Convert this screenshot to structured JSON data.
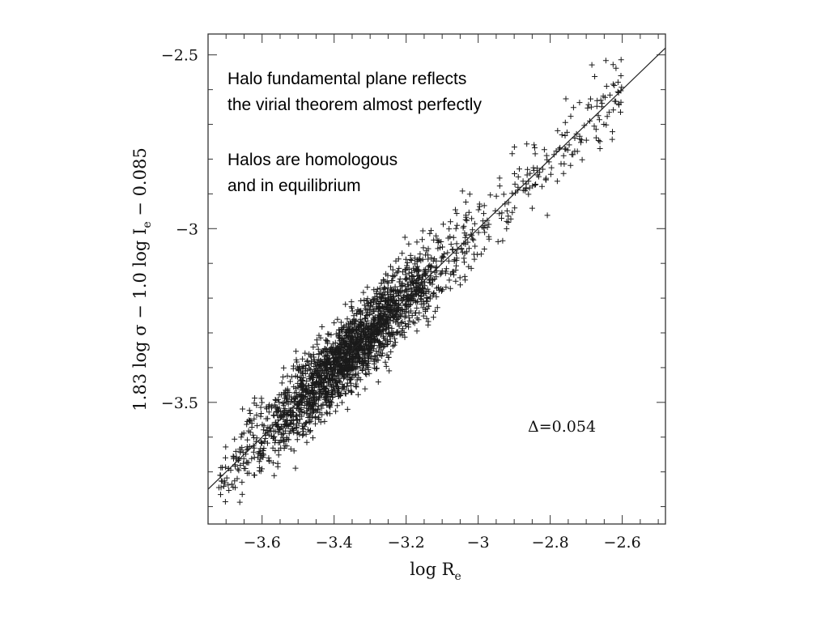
{
  "chart_data": {
    "type": "scatter",
    "marker": "+",
    "xlabel": "log R",
    "xlabel_subscript": "e",
    "ylabel": "1.83 log σ − 1.0 log I",
    "ylabel_subscript": "e",
    "ylabel_suffix": " − 0.085",
    "xlim": [
      -3.75,
      -2.48
    ],
    "ylim": [
      -3.85,
      -2.44
    ],
    "xticks": [
      {
        "value": -3.6,
        "label": "−3.6"
      },
      {
        "value": -3.4,
        "label": "−3.4"
      },
      {
        "value": -3.2,
        "label": "−3.2"
      },
      {
        "value": -3.0,
        "label": "−3"
      },
      {
        "value": -2.8,
        "label": "−2.8"
      },
      {
        "value": -2.6,
        "label": "−2.6"
      }
    ],
    "yticks": [
      {
        "value": -2.5,
        "label": "−2.5"
      },
      {
        "value": -3.0,
        "label": "−3"
      },
      {
        "value": -3.5,
        "label": "−3.5"
      }
    ],
    "fit_line": {
      "slope": 1.0,
      "intercept": 0.0
    },
    "annotation": "Δ=0.054",
    "scatter_model": {
      "count": 2400,
      "x_center": -3.36,
      "x_spread": 0.13,
      "y_offset": 0.0,
      "scatter_sigma": 0.054,
      "x_min": -3.72,
      "x_max": -2.6,
      "color": "#1a1a1a"
    }
  },
  "notes": {
    "line1": "Halo fundamental plane reflects",
    "line2": "the virial theorem almost perfectly",
    "line3": "Halos are homologous",
    "line4": "and in equilibrium"
  }
}
